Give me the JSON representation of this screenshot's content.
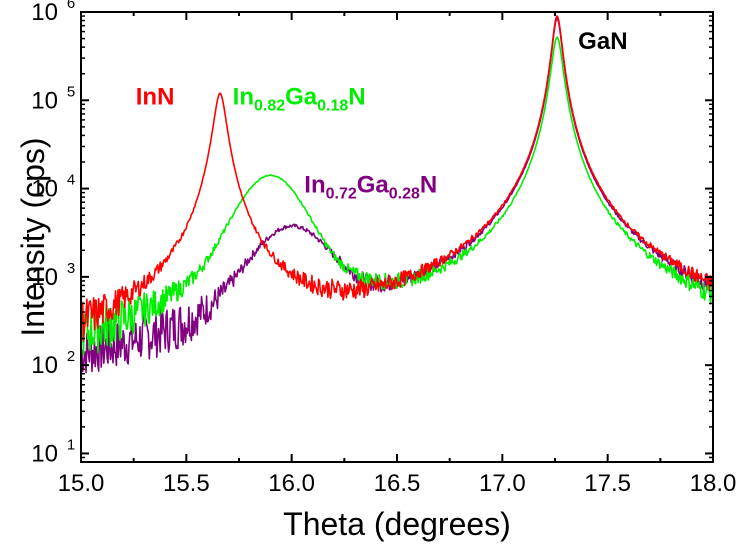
{
  "chart_data": {
    "type": "line",
    "title": "",
    "xlabel": "Theta (degrees)",
    "ylabel": "Intensity (cps)",
    "xlim": [
      15.0,
      18.0
    ],
    "ylim": [
      8,
      1000000
    ],
    "yscale": "log",
    "grid": false,
    "x_ticks": [
      "15.0",
      "15.5",
      "16.0",
      "16.5",
      "17.0",
      "17.5",
      "18.0"
    ],
    "y_ticks": [
      {
        "base": "10",
        "exp": "1"
      },
      {
        "base": "10",
        "exp": "2"
      },
      {
        "base": "10",
        "exp": "3"
      },
      {
        "base": "10",
        "exp": "4"
      },
      {
        "base": "10",
        "exp": "5"
      },
      {
        "base": "10",
        "exp": "6"
      }
    ],
    "annotations": [
      {
        "parts": [
          {
            "t": "InN",
            "sub": false
          }
        ],
        "color": "#ff0000",
        "x": 15.26,
        "y": 90000
      },
      {
        "parts": [
          {
            "t": "In",
            "sub": false
          },
          {
            "t": "0.82",
            "sub": true
          },
          {
            "t": "Ga",
            "sub": false
          },
          {
            "t": "0.18",
            "sub": true
          },
          {
            "t": "N",
            "sub": false
          }
        ],
        "color": "#00ee00",
        "x": 15.72,
        "y": 90000
      },
      {
        "parts": [
          {
            "t": "In",
            "sub": false
          },
          {
            "t": "0.72",
            "sub": true
          },
          {
            "t": "Ga",
            "sub": false
          },
          {
            "t": "0.28",
            "sub": true
          },
          {
            "t": "N",
            "sub": false
          }
        ],
        "color": "#800080",
        "x": 16.06,
        "y": 9000
      },
      {
        "parts": [
          {
            "t": "GaN",
            "sub": false
          }
        ],
        "color": "#000000",
        "x": 17.36,
        "y": 380000
      }
    ],
    "series": [
      {
        "color": "#800080",
        "floor": 12,
        "peaks": [
          {
            "center": 16.0,
            "height": 3500,
            "width": 0.17,
            "shape": "pv"
          },
          {
            "center": 17.26,
            "height": 850000,
            "width": 0.022,
            "shape": "lorentz"
          }
        ]
      },
      {
        "color": "#00ee00",
        "floor": 14,
        "peaks": [
          {
            "center": 15.9,
            "height": 14000,
            "width": 0.14,
            "shape": "pv"
          },
          {
            "center": 17.26,
            "height": 520000,
            "width": 0.025,
            "shape": "lorentz"
          }
        ]
      },
      {
        "color": "#ff0000",
        "floor": 16,
        "peaks": [
          {
            "center": 15.66,
            "height": 120000,
            "width": 0.028,
            "shape": "lorentz"
          },
          {
            "center": 17.26,
            "height": 900000,
            "width": 0.022,
            "shape": "lorentz"
          }
        ]
      }
    ]
  }
}
